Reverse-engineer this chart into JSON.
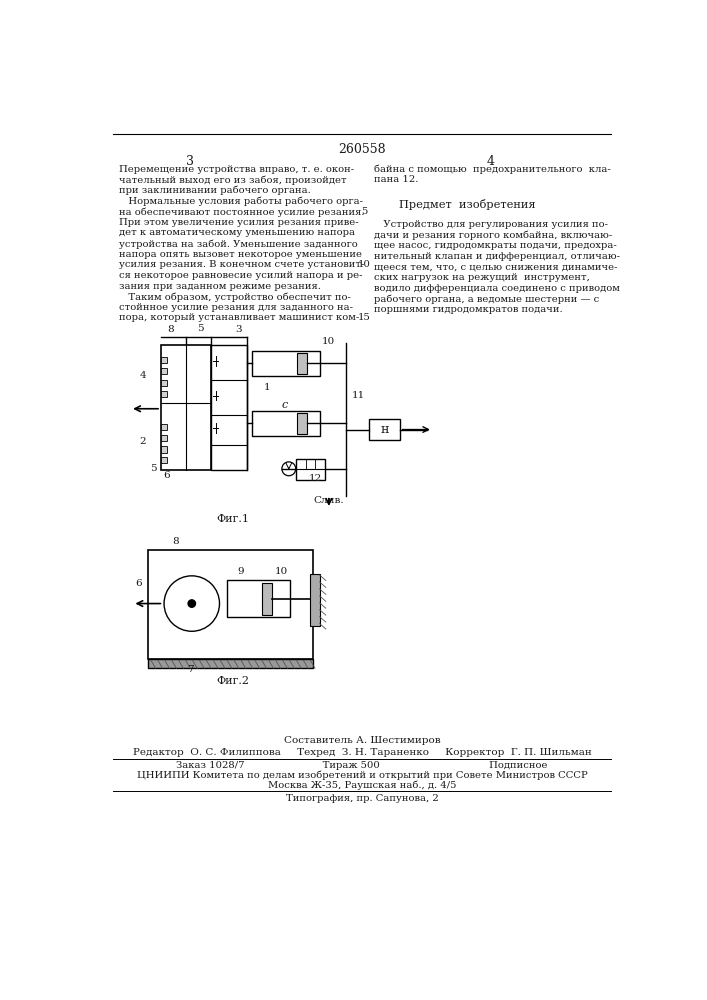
{
  "page_number": "260558",
  "col_left_num": "3",
  "col_right_num": "4",
  "line_num_5": "5",
  "line_num_10": "10",
  "line_num_15": "15",
  "left_text": [
    "Перемещение устройства вправо, т. е. окон-",
    "чательный выход его из забоя, произойдет",
    "при заклинивании рабочего органа.",
    "   Нормальные условия работы рабочего орга-",
    "на обеспечивают постоянное усилие резания.",
    "При этом увеличение усилия резания приве-",
    "дет к автоматическому уменьшению напора",
    "устройства на забой. Уменьшение заданного",
    "напора опять вызовет некоторое уменьшение",
    "усилия резания. В конечном счете установит-",
    "ся некоторое равновесие усилий напора и ре-",
    "зания при заданном режиме резания.",
    "   Таким образом, устройство обеспечит по-",
    "стойнное усилие резания для заданного на-",
    "пора, который устанавливает машинист ком-"
  ],
  "right_text_top": [
    "байна с помощью  предохранительного  кла-",
    "пана 12."
  ],
  "predmet_header": "Предмет  изобретения",
  "right_text_body": [
    "   Устройство для регулирования усилия по-",
    "дачи и резания горного комбайна, включаю-",
    "щее насос, гидродомкраты подачи, предохра-",
    "нительный клапан и дифференциал, отличаю-",
    "щееся тем, что, с целью снижения динамиче-",
    "ских нагрузок на режущий  инструмент,",
    "водило дифференциала соединено с приводом",
    "рабочего органа, а ведомые шестерни — с",
    "поршнями гидродомкратов подачи."
  ],
  "fig1_label": "Фиг.1",
  "fig2_label": "Фиг.2",
  "sostavitel_label": "Составитель А. Шестимиров",
  "editor_line": "Редактор  О. С. Филиппова     Техред  З. Н. Тараненко     Корректор  Г. П. Шильман",
  "zakaz_line": "Заказ 1028/7                         Тираж 500                                   Подписное",
  "tsniip_line": "ЦНИИПИ Комитета по делам изобретений и открытий при Совете Министров СССР",
  "moskva_line": "Москва Ж-35, Раушская наб., д. 4/5",
  "tipografia_line": "Типография, пр. Сапунова, 2",
  "bg_color": "#ffffff",
  "text_color": "#1a1a1a",
  "line_color": "#000000"
}
